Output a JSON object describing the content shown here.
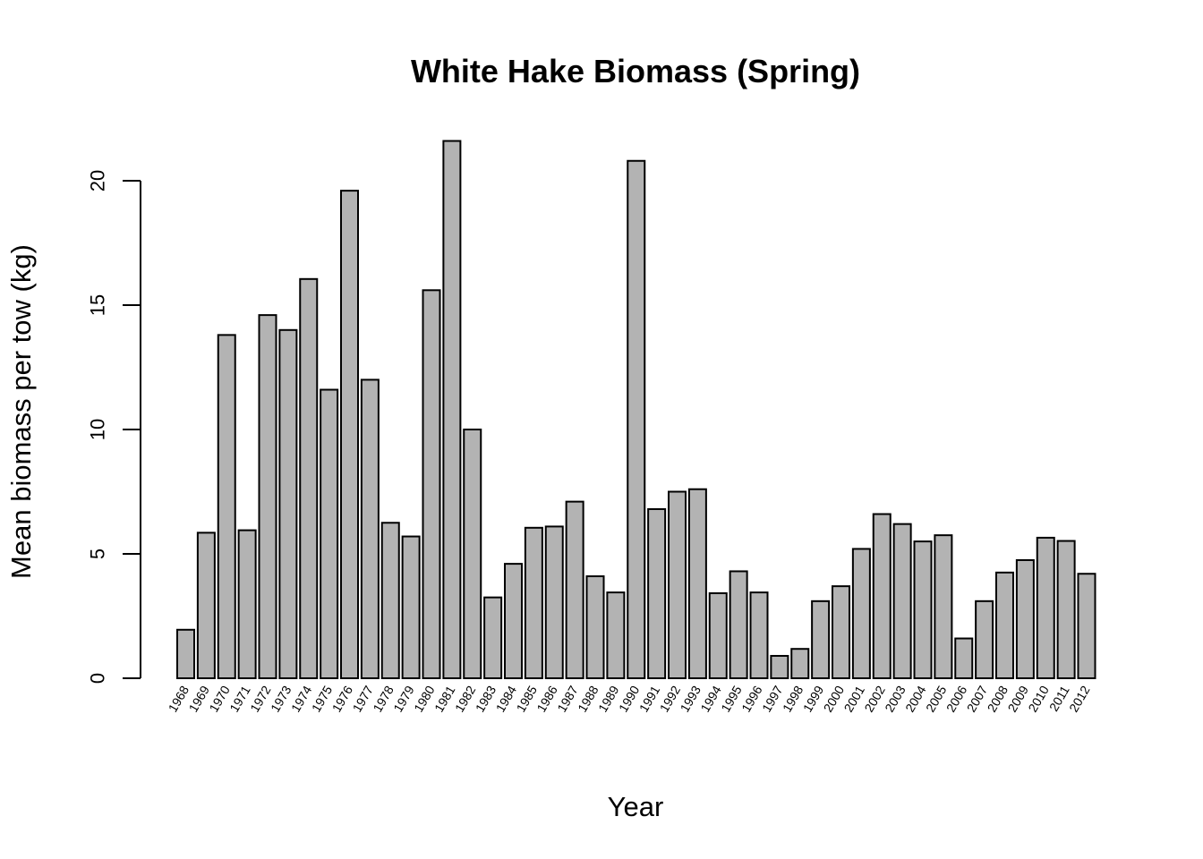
{
  "chart_data": {
    "type": "bar",
    "title": "White Hake Biomass (Spring)",
    "xlabel": "Year",
    "ylabel": "Mean biomass per tow (kg)",
    "ylim": [
      0,
      22
    ],
    "yticks": [
      0,
      5,
      10,
      15,
      20
    ],
    "categories": [
      "1968",
      "1969",
      "1970",
      "1971",
      "1972",
      "1973",
      "1974",
      "1975",
      "1976",
      "1977",
      "1978",
      "1979",
      "1980",
      "1981",
      "1982",
      "1983",
      "1984",
      "1985",
      "1986",
      "1987",
      "1988",
      "1989",
      "1990",
      "1991",
      "1992",
      "1993",
      "1994",
      "1995",
      "1996",
      "1997",
      "1998",
      "1999",
      "2000",
      "2001",
      "2002",
      "2003",
      "2004",
      "2005",
      "2006",
      "2007",
      "2008",
      "2009",
      "2010",
      "2011",
      "2012"
    ],
    "values": [
      1.95,
      5.85,
      13.8,
      5.95,
      14.6,
      14.0,
      16.05,
      11.6,
      19.6,
      12.0,
      6.25,
      5.7,
      15.6,
      21.6,
      10.0,
      3.25,
      4.6,
      6.05,
      6.1,
      7.1,
      4.1,
      3.45,
      20.8,
      6.8,
      7.5,
      7.6,
      3.42,
      4.3,
      3.45,
      0.9,
      1.18,
      3.1,
      3.7,
      5.2,
      6.6,
      6.2,
      5.5,
      5.75,
      1.6,
      3.1,
      4.25,
      4.75,
      5.65,
      5.52,
      4.2
    ],
    "grid": false,
    "legend": "none",
    "bar_color": "#b3b3b3"
  }
}
